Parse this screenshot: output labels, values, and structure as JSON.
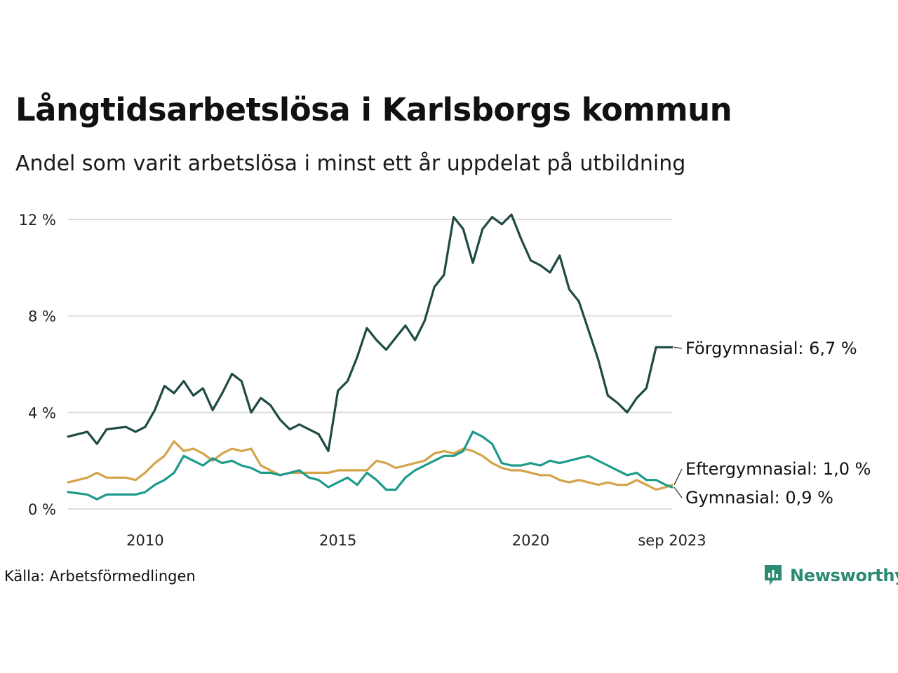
{
  "title": "Långtidsarbetslösa i Karlsborgs kommun",
  "subtitle": "Andel som varit arbetslösa i minst ett år uppdelat på utbildning",
  "source": "Källa: Arbetsförmedlingen",
  "logo_text": "Newsworthy",
  "colors": {
    "forgymnasial": "#1f4a44",
    "gymnasial": "#1d9a8a",
    "eftergymnasial": "#d4a34a",
    "grid": "#dddddd",
    "logo": "#2d8a72"
  },
  "chart_data": {
    "type": "line",
    "title": "Långtidsarbetslösa i Karlsborgs kommun",
    "xlabel": "",
    "ylabel": "",
    "x_range": [
      2008.0,
      2023.667
    ],
    "ylim": [
      0,
      12.4
    ],
    "y_ticks": [
      0,
      4,
      8,
      12
    ],
    "y_tick_labels": [
      "0 %",
      "4 %",
      "8 %",
      "12 %"
    ],
    "x_ticks": [
      2010,
      2015,
      2020,
      2023.667
    ],
    "x_tick_labels": [
      "2010",
      "2015",
      "2020",
      "sep 2023"
    ],
    "series": [
      {
        "name": "Förgymnasial",
        "end_label": "Förgymnasial: 6,7 %",
        "x": [
          2008.0,
          2008.5,
          2008.75,
          2009.0,
          2009.5,
          2009.75,
          2010.0,
          2010.25,
          2010.5,
          2010.75,
          2011.0,
          2011.25,
          2011.5,
          2011.75,
          2012.0,
          2012.25,
          2012.5,
          2012.75,
          2013.0,
          2013.25,
          2013.5,
          2013.75,
          2014.0,
          2014.25,
          2014.5,
          2014.75,
          2015.0,
          2015.25,
          2015.5,
          2015.75,
          2016.0,
          2016.25,
          2016.5,
          2016.75,
          2017.0,
          2017.25,
          2017.5,
          2017.75,
          2018.0,
          2018.25,
          2018.5,
          2018.75,
          2019.0,
          2019.25,
          2019.5,
          2019.75,
          2020.0,
          2020.25,
          2020.5,
          2020.75,
          2021.0,
          2021.25,
          2021.5,
          2021.75,
          2022.0,
          2022.25,
          2022.5,
          2022.75,
          2023.0,
          2023.25,
          2023.5,
          2023.667
        ],
        "values": [
          3.0,
          3.2,
          2.7,
          3.3,
          3.4,
          3.2,
          3.4,
          4.1,
          5.1,
          4.8,
          5.3,
          4.7,
          5.0,
          4.1,
          4.8,
          5.6,
          5.3,
          4.0,
          4.6,
          4.3,
          3.7,
          3.3,
          3.5,
          3.3,
          3.1,
          2.4,
          4.9,
          5.3,
          6.3,
          7.5,
          7.0,
          6.6,
          7.1,
          7.6,
          7.0,
          7.8,
          9.2,
          9.7,
          12.1,
          11.6,
          10.2,
          11.6,
          12.1,
          11.8,
          12.2,
          11.2,
          10.3,
          10.1,
          9.8,
          10.5,
          9.1,
          8.6,
          7.4,
          6.2,
          4.7,
          4.4,
          4.0,
          4.6,
          5.0,
          6.7,
          6.7,
          6.7
        ]
      },
      {
        "name": "Eftergymnasial",
        "end_label": "Eftergymnasial: 1,0 %",
        "x": [
          2008.0,
          2008.5,
          2008.75,
          2009.0,
          2009.5,
          2009.75,
          2010.0,
          2010.25,
          2010.5,
          2010.75,
          2011.0,
          2011.25,
          2011.5,
          2011.75,
          2012.0,
          2012.25,
          2012.5,
          2012.75,
          2013.0,
          2013.25,
          2013.5,
          2013.75,
          2014.0,
          2014.25,
          2014.5,
          2014.75,
          2015.0,
          2015.25,
          2015.5,
          2015.75,
          2016.0,
          2016.25,
          2016.5,
          2016.75,
          2017.0,
          2017.25,
          2017.5,
          2017.75,
          2018.0,
          2018.25,
          2018.5,
          2018.75,
          2019.0,
          2019.25,
          2019.5,
          2019.75,
          2020.0,
          2020.25,
          2020.5,
          2020.75,
          2021.0,
          2021.25,
          2021.5,
          2021.75,
          2022.0,
          2022.25,
          2022.5,
          2022.75,
          2023.0,
          2023.25,
          2023.5,
          2023.667
        ],
        "values": [
          1.1,
          1.3,
          1.5,
          1.3,
          1.3,
          1.2,
          1.5,
          1.9,
          2.2,
          2.8,
          2.4,
          2.5,
          2.3,
          2.0,
          2.3,
          2.5,
          2.4,
          2.5,
          1.8,
          1.6,
          1.4,
          1.5,
          1.5,
          1.5,
          1.5,
          1.5,
          1.6,
          1.6,
          1.6,
          1.6,
          2.0,
          1.9,
          1.7,
          1.8,
          1.9,
          2.0,
          2.3,
          2.4,
          2.3,
          2.5,
          2.4,
          2.2,
          1.9,
          1.7,
          1.6,
          1.6,
          1.5,
          1.4,
          1.4,
          1.2,
          1.1,
          1.2,
          1.1,
          1.0,
          1.1,
          1.0,
          1.0,
          1.2,
          1.0,
          0.8,
          0.9,
          1.0
        ]
      },
      {
        "name": "Gymnasial",
        "end_label": "Gymnasial: 0,9 %",
        "x": [
          2008.0,
          2008.5,
          2008.75,
          2009.0,
          2009.5,
          2009.75,
          2010.0,
          2010.25,
          2010.5,
          2010.75,
          2011.0,
          2011.25,
          2011.5,
          2011.75,
          2012.0,
          2012.25,
          2012.5,
          2012.75,
          2013.0,
          2013.25,
          2013.5,
          2013.75,
          2014.0,
          2014.25,
          2014.5,
          2014.75,
          2015.0,
          2015.25,
          2015.5,
          2015.75,
          2016.0,
          2016.25,
          2016.5,
          2016.75,
          2017.0,
          2017.25,
          2017.5,
          2017.75,
          2018.0,
          2018.25,
          2018.5,
          2018.75,
          2019.0,
          2019.25,
          2019.5,
          2019.75,
          2020.0,
          2020.25,
          2020.5,
          2020.75,
          2021.0,
          2021.25,
          2021.5,
          2021.75,
          2022.0,
          2022.25,
          2022.5,
          2022.75,
          2023.0,
          2023.25,
          2023.5,
          2023.667
        ],
        "values": [
          0.7,
          0.6,
          0.4,
          0.6,
          0.6,
          0.6,
          0.7,
          1.0,
          1.2,
          1.5,
          2.2,
          2.0,
          1.8,
          2.1,
          1.9,
          2.0,
          1.8,
          1.7,
          1.5,
          1.5,
          1.4,
          1.5,
          1.6,
          1.3,
          1.2,
          0.9,
          1.1,
          1.3,
          1.0,
          1.5,
          1.2,
          0.8,
          0.8,
          1.3,
          1.6,
          1.8,
          2.0,
          2.2,
          2.2,
          2.4,
          3.2,
          3.0,
          2.7,
          1.9,
          1.8,
          1.8,
          1.9,
          1.8,
          2.0,
          1.9,
          2.0,
          2.1,
          2.2,
          2.0,
          1.8,
          1.6,
          1.4,
          1.5,
          1.2,
          1.2,
          1.0,
          0.9
        ]
      }
    ]
  }
}
